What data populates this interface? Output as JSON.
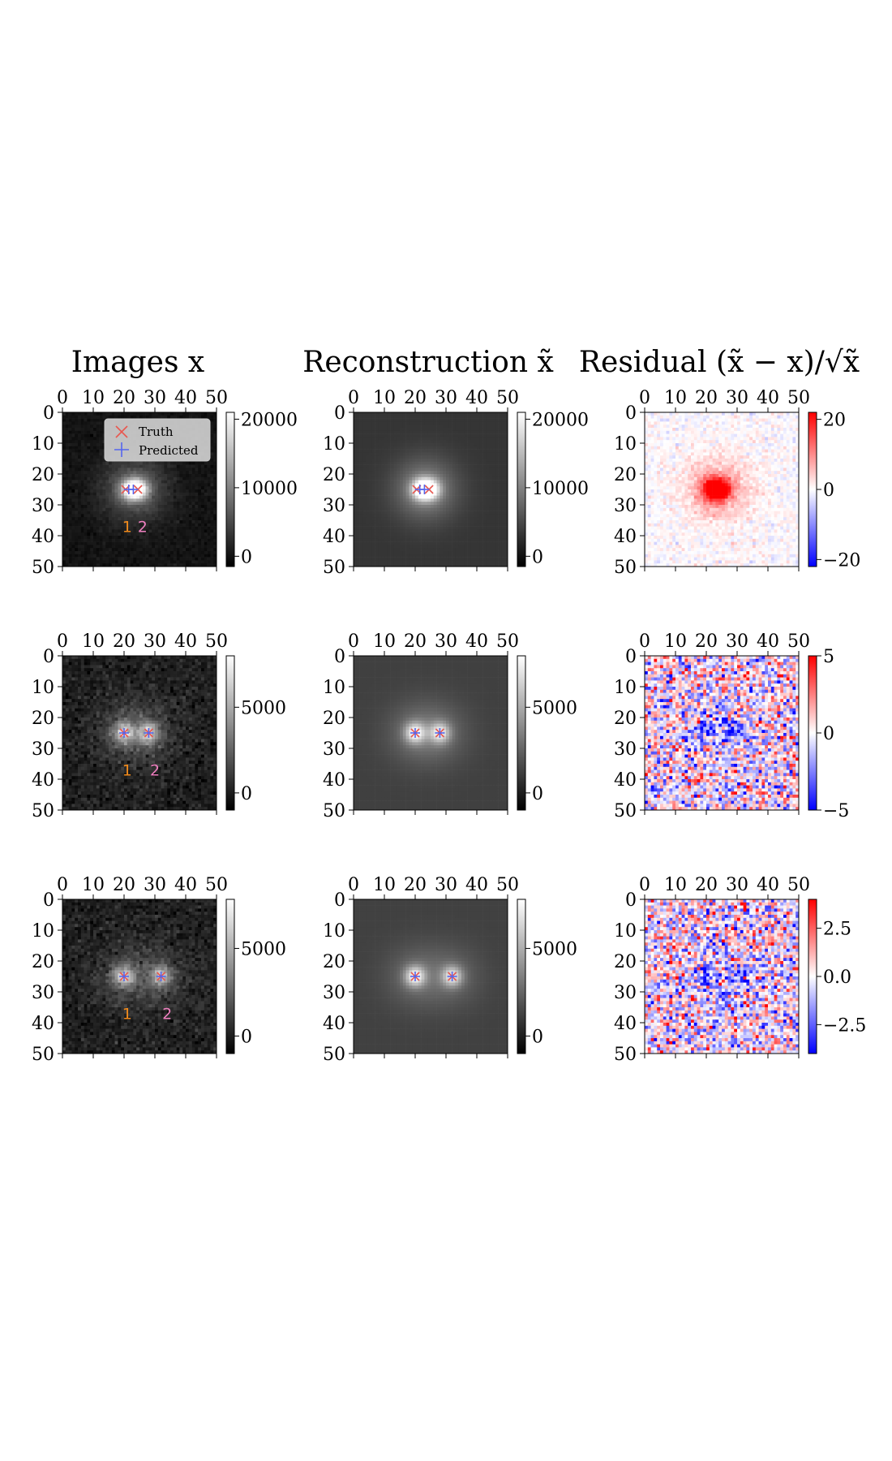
{
  "column_titles": [
    "Images x",
    "Reconstruction x̃",
    "Residual (x̃ − x)/√x̃"
  ],
  "colors": {
    "truth_marker": "#e8574f",
    "predicted_marker": "#5566ee",
    "source_1_label": "#f08a1c",
    "source_2_label": "#ee7fbf",
    "residual_positive": "#ff0000",
    "residual_negative": "#0000ff"
  },
  "chart_data": [
    {
      "type": "heatmap",
      "row": 1,
      "column": "Images x",
      "colormap": "gray",
      "xlim": [
        0,
        50
      ],
      "ylim": [
        0,
        50
      ],
      "xticks": [
        "0",
        "10",
        "20",
        "30",
        "40",
        "50"
      ],
      "yticks": [
        "0",
        "10",
        "20",
        "30",
        "40",
        "50"
      ],
      "colorbar_ticks": [
        "20000",
        "10000",
        "0"
      ],
      "colorbar_range": [
        -1500,
        21000
      ],
      "sources": [
        {
          "x": 22,
          "y": 25,
          "peak": 20000
        },
        {
          "x": 25,
          "y": 25,
          "peak": 17000
        }
      ],
      "truth": [
        {
          "x": 20.5,
          "y": 25
        },
        {
          "x": 24.5,
          "y": 25
        }
      ],
      "predicted": [
        {
          "x": 21.5,
          "y": 25
        },
        {
          "x": 23.0,
          "y": 25
        }
      ],
      "labels": [
        {
          "text": "1",
          "x": 21,
          "y": 37
        },
        {
          "text": "2",
          "x": 26,
          "y": 37
        }
      ],
      "legend": {
        "entries": [
          "Truth",
          "Predicted"
        ],
        "position": "top-right"
      }
    },
    {
      "type": "heatmap",
      "row": 1,
      "column": "Reconstruction x̃",
      "colormap": "gray",
      "xlim": [
        0,
        50
      ],
      "ylim": [
        0,
        50
      ],
      "xticks": [
        "0",
        "10",
        "20",
        "30",
        "40",
        "50"
      ],
      "yticks": [
        "0",
        "10",
        "20",
        "30",
        "40",
        "50"
      ],
      "colorbar_ticks": [
        "20000",
        "10000",
        "0"
      ],
      "colorbar_range": [
        -1500,
        21000
      ],
      "truth": [
        {
          "x": 20.5,
          "y": 25
        },
        {
          "x": 24.5,
          "y": 25
        }
      ],
      "predicted": [
        {
          "x": 21.5,
          "y": 25
        },
        {
          "x": 23.0,
          "y": 25
        }
      ]
    },
    {
      "type": "heatmap",
      "row": 1,
      "column": "Residual",
      "colormap": "bwr",
      "xlim": [
        0,
        50
      ],
      "ylim": [
        0,
        50
      ],
      "xticks": [
        "0",
        "10",
        "20",
        "30",
        "40",
        "50"
      ],
      "yticks": [
        "0",
        "10",
        "20",
        "30",
        "40",
        "50"
      ],
      "colorbar_ticks": [
        "20",
        "0",
        "−20"
      ],
      "colorbar_range": [
        -22,
        22
      ]
    },
    {
      "type": "heatmap",
      "row": 2,
      "column": "Images x",
      "colormap": "gray",
      "xlim": [
        0,
        50
      ],
      "ylim": [
        0,
        50
      ],
      "xticks": [
        "0",
        "10",
        "20",
        "30",
        "40",
        "50"
      ],
      "yticks": [
        "0",
        "10",
        "20",
        "30",
        "40",
        "50"
      ],
      "colorbar_ticks": [
        "5000",
        "0"
      ],
      "colorbar_range": [
        -1000,
        8000
      ],
      "sources": [
        {
          "x": 20,
          "y": 25,
          "peak": 6500
        },
        {
          "x": 28,
          "y": 25,
          "peak": 6000
        }
      ],
      "truth": [
        {
          "x": 20,
          "y": 25
        },
        {
          "x": 28,
          "y": 25
        }
      ],
      "predicted": [
        {
          "x": 20,
          "y": 25
        },
        {
          "x": 28,
          "y": 25
        }
      ],
      "labels": [
        {
          "text": "1",
          "x": 21,
          "y": 37
        },
        {
          "text": "2",
          "x": 30,
          "y": 37
        }
      ]
    },
    {
      "type": "heatmap",
      "row": 2,
      "column": "Reconstruction x̃",
      "colormap": "gray",
      "xlim": [
        0,
        50
      ],
      "ylim": [
        0,
        50
      ],
      "xticks": [
        "0",
        "10",
        "20",
        "30",
        "40",
        "50"
      ],
      "yticks": [
        "0",
        "10",
        "20",
        "30",
        "40",
        "50"
      ],
      "colorbar_ticks": [
        "5000",
        "0"
      ],
      "colorbar_range": [
        -1000,
        8000
      ],
      "truth": [
        {
          "x": 20,
          "y": 25
        },
        {
          "x": 28,
          "y": 25
        }
      ],
      "predicted": [
        {
          "x": 20,
          "y": 25
        },
        {
          "x": 28,
          "y": 25
        }
      ]
    },
    {
      "type": "heatmap",
      "row": 2,
      "column": "Residual",
      "colormap": "bwr",
      "xlim": [
        0,
        50
      ],
      "ylim": [
        0,
        50
      ],
      "xticks": [
        "0",
        "10",
        "20",
        "30",
        "40",
        "50"
      ],
      "yticks": [
        "0",
        "10",
        "20",
        "30",
        "40",
        "50"
      ],
      "colorbar_ticks": [
        "5",
        "0",
        "−5"
      ],
      "colorbar_range": [
        -5,
        5
      ]
    },
    {
      "type": "heatmap",
      "row": 3,
      "column": "Images x",
      "colormap": "gray",
      "xlim": [
        0,
        50
      ],
      "ylim": [
        0,
        50
      ],
      "xticks": [
        "0",
        "10",
        "20",
        "30",
        "40",
        "50"
      ],
      "yticks": [
        "0",
        "10",
        "20",
        "30",
        "40",
        "50"
      ],
      "colorbar_ticks": [
        "5000",
        "0"
      ],
      "colorbar_range": [
        -1000,
        7800
      ],
      "sources": [
        {
          "x": 20,
          "y": 25,
          "peak": 6500
        },
        {
          "x": 32,
          "y": 25,
          "peak": 5800
        }
      ],
      "truth": [
        {
          "x": 20,
          "y": 25
        },
        {
          "x": 32,
          "y": 25
        }
      ],
      "predicted": [
        {
          "x": 20,
          "y": 25
        },
        {
          "x": 32,
          "y": 25
        }
      ],
      "labels": [
        {
          "text": "1",
          "x": 21,
          "y": 37
        },
        {
          "text": "2",
          "x": 34,
          "y": 37
        }
      ]
    },
    {
      "type": "heatmap",
      "row": 3,
      "column": "Reconstruction x̃",
      "colormap": "gray",
      "xlim": [
        0,
        50
      ],
      "ylim": [
        0,
        50
      ],
      "xticks": [
        "0",
        "10",
        "20",
        "30",
        "40",
        "50"
      ],
      "yticks": [
        "0",
        "10",
        "20",
        "30",
        "40",
        "50"
      ],
      "colorbar_ticks": [
        "5000",
        "0"
      ],
      "colorbar_range": [
        -1000,
        7800
      ],
      "truth": [
        {
          "x": 20,
          "y": 25
        },
        {
          "x": 32,
          "y": 25
        }
      ],
      "predicted": [
        {
          "x": 20,
          "y": 25
        },
        {
          "x": 32,
          "y": 25
        }
      ]
    },
    {
      "type": "heatmap",
      "row": 3,
      "column": "Residual",
      "colormap": "bwr",
      "xlim": [
        0,
        50
      ],
      "ylim": [
        0,
        50
      ],
      "xticks": [
        "0",
        "10",
        "20",
        "30",
        "40",
        "50"
      ],
      "yticks": [
        "0",
        "10",
        "20",
        "30",
        "40",
        "50"
      ],
      "colorbar_ticks": [
        "2.5",
        "0.0",
        "−2.5"
      ],
      "colorbar_range": [
        -4,
        4
      ]
    }
  ]
}
